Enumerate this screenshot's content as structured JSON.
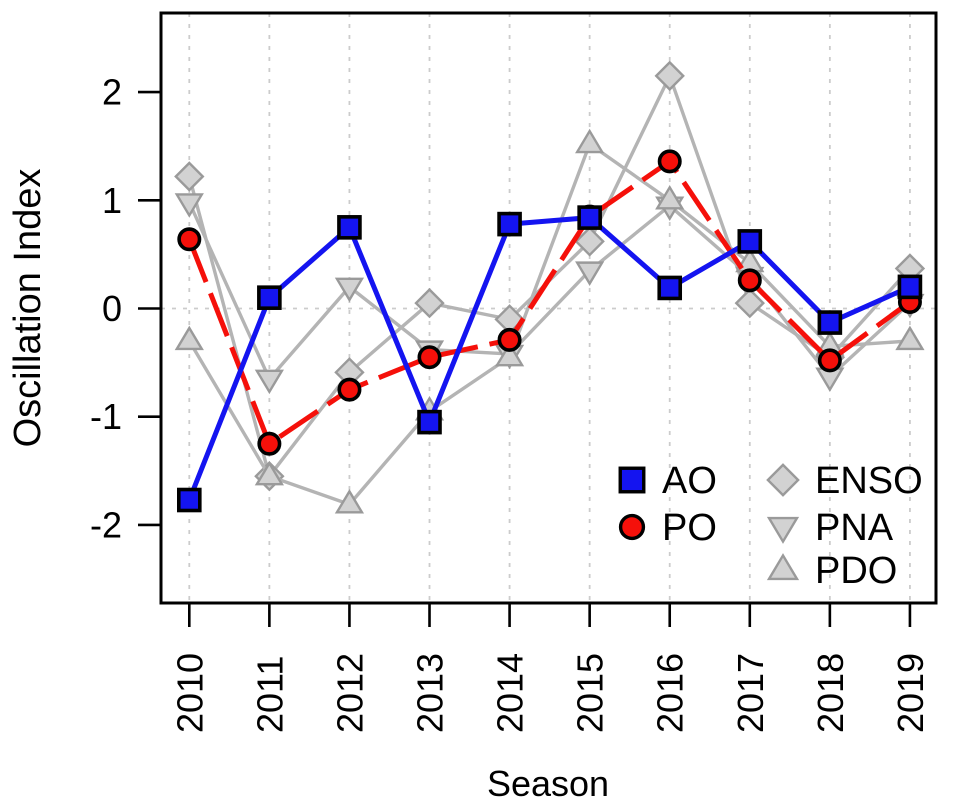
{
  "chart_data": {
    "type": "line",
    "title": "",
    "xlabel": "Season",
    "ylabel": "Oscillation Index",
    "categories": [
      "2010",
      "2011",
      "2012",
      "2013",
      "2014",
      "2015",
      "2016",
      "2017",
      "2018",
      "2019"
    ],
    "y_ticks": [
      "2",
      "1",
      "0",
      "-1",
      "-2"
    ],
    "y_tick_values": [
      2,
      1,
      0,
      -1,
      -2
    ],
    "ylim": [
      -2.72,
      2.73
    ],
    "grid": {
      "vertical_dashed_per_year": true,
      "horizontal_dashed_at_zero": true,
      "color": "#cccccc"
    },
    "legend_position": "bottom-right-inside",
    "series": [
      {
        "name": "AO",
        "marker": "square",
        "line_color": "#1414f0",
        "fill": "#1414f0",
        "stroke": "#000000",
        "dash": "none",
        "values": [
          -1.77,
          0.1,
          0.75,
          -1.05,
          0.78,
          0.84,
          0.19,
          0.62,
          -0.13,
          0.2
        ]
      },
      {
        "name": "PO",
        "marker": "circle",
        "line_color": "#f5100a",
        "fill": "#f5100a",
        "stroke": "#000000",
        "dash": "46 12",
        "values": [
          0.64,
          -1.25,
          -0.75,
          -0.45,
          -0.29,
          0.85,
          1.36,
          0.26,
          -0.48,
          0.06
        ]
      },
      {
        "name": "ENSO",
        "marker": "diamond",
        "line_color": "#b4b4b4",
        "fill": "#d2d2d2",
        "stroke": "#9a9a9a",
        "dash": "none",
        "values": [
          1.22,
          -1.55,
          -0.59,
          0.05,
          -0.1,
          0.62,
          2.15,
          0.05,
          -0.45,
          0.37
        ]
      },
      {
        "name": "PNA",
        "marker": "triangle-down",
        "line_color": "#b4b4b4",
        "fill": "#d2d2d2",
        "stroke": "#9a9a9a",
        "dash": "none",
        "values": [
          0.98,
          -0.65,
          0.2,
          -0.38,
          -0.42,
          0.35,
          0.95,
          0.3,
          -0.63,
          0.05
        ]
      },
      {
        "name": "PDO",
        "marker": "triangle-up",
        "line_color": "#b4b4b4",
        "fill": "#d2d2d2",
        "stroke": "#9a9a9a",
        "dash": "none",
        "values": [
          -0.3,
          -1.55,
          -1.81,
          -0.95,
          -0.45,
          1.52,
          1.0,
          0.42,
          -0.35,
          -0.3
        ]
      }
    ],
    "legend": {
      "columns": [
        {
          "entries": [
            "AO",
            "PO"
          ]
        },
        {
          "entries": [
            "ENSO",
            "PNA",
            "PDO"
          ]
        }
      ]
    }
  }
}
